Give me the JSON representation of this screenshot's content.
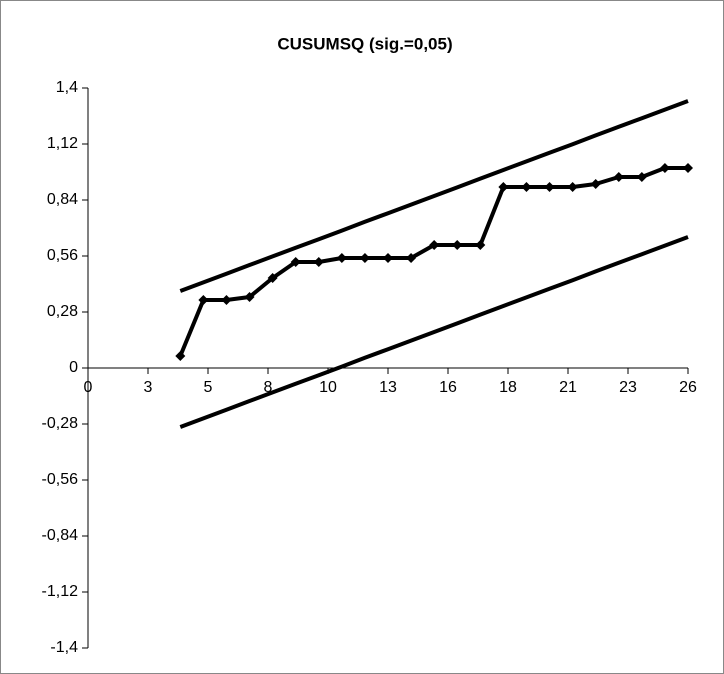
{
  "chart_data": {
    "type": "line",
    "title": "CUSUMSQ (sig.=0,05)",
    "x": [
      4,
      5,
      6,
      7,
      8,
      9,
      10,
      11,
      12,
      13,
      14,
      15,
      16,
      17,
      18,
      19,
      20,
      21,
      22,
      23,
      24,
      25,
      26
    ],
    "series": [
      {
        "color": "#000000",
        "marker": "diamond",
        "values": [
          0.06,
          0.34,
          0.34,
          0.355,
          0.45,
          0.53,
          0.53,
          0.55,
          0.55,
          0.55,
          0.55,
          0.615,
          0.615,
          0.615,
          0.905,
          0.905,
          0.905,
          0.905,
          0.92,
          0.955,
          0.955,
          1.0,
          1.0
        ]
      },
      {
        "color": "#000000",
        "values": [
          0.385,
          0.428,
          0.471,
          0.515,
          0.558,
          0.601,
          0.644,
          0.687,
          0.731,
          0.774,
          0.817,
          0.86,
          0.903,
          0.947,
          0.99,
          1.033,
          1.076,
          1.119,
          1.163,
          1.206,
          1.249,
          1.292,
          1.335
        ]
      },
      {
        "color": "#000000",
        "values": [
          -0.295,
          -0.252,
          -0.209,
          -0.165,
          -0.122,
          -0.079,
          -0.036,
          0.007,
          0.051,
          0.094,
          0.137,
          0.18,
          0.223,
          0.267,
          0.31,
          0.353,
          0.396,
          0.439,
          0.483,
          0.526,
          0.569,
          0.612,
          0.655
        ]
      }
    ],
    "xlim": [
      0,
      26
    ],
    "xticks": [
      0,
      {
        "value": 2.6,
        "label": "3"
      },
      {
        "value": 5.2,
        "label": "5"
      },
      {
        "value": 7.8,
        "label": "8"
      },
      {
        "value": 10.4,
        "label": "10"
      },
      13,
      {
        "value": 15.6,
        "label": "16"
      },
      {
        "value": 18.2,
        "label": "18"
      },
      {
        "value": 20.8,
        "label": "21"
      },
      {
        "value": 23.4,
        "label": "23"
      },
      26
    ],
    "ylim": [
      -1.4,
      1.4
    ],
    "yticks": [
      {
        "value": 1.4,
        "label": "1,4"
      },
      {
        "value": 1.12,
        "label": "1,12"
      },
      {
        "value": 0.84,
        "label": "0,84"
      },
      {
        "value": 0.56,
        "label": "0,56"
      },
      {
        "value": 0.28,
        "label": "0,28"
      },
      0,
      {
        "value": -0.28,
        "label": "-0,28"
      },
      {
        "value": -0.56,
        "label": "-0,56"
      },
      {
        "value": -0.84,
        "label": "-0,84"
      },
      {
        "value": -1.12,
        "label": "-1,12"
      },
      {
        "value": -1.4,
        "label": "-1,4"
      }
    ]
  }
}
